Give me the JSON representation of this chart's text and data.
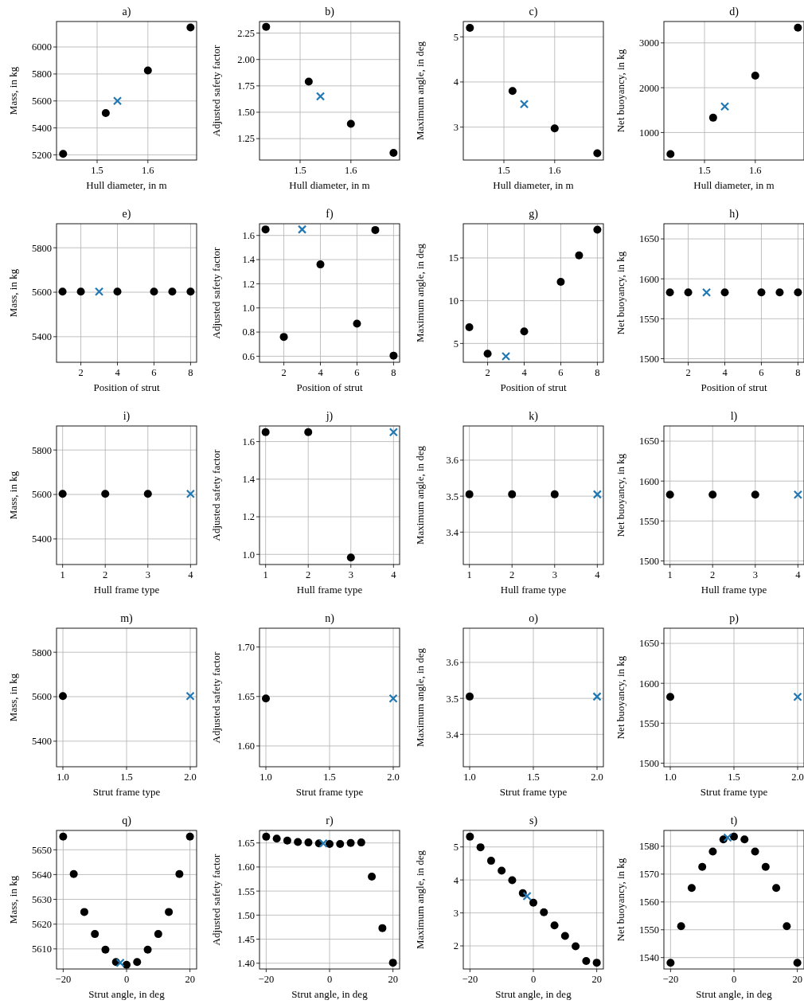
{
  "chart_data": [
    {
      "type": "scatter",
      "title": "a)",
      "xlabel": "Hull diameter, in m",
      "ylabel": "Mass, in kg",
      "xlim": [
        1.42,
        1.696
      ],
      "xticks": [
        1.5,
        1.6
      ],
      "ylim": [
        5162,
        6189
      ],
      "yticks": [
        5200,
        5400,
        5600,
        5800,
        6000
      ],
      "grid": true,
      "series": [
        {
          "color": "#000000",
          "marker": "circle",
          "x": [
            1.433,
            1.517,
            1.6,
            1.684
          ],
          "values": [
            5208,
            5510,
            5826,
            6145
          ]
        },
        {
          "color": "#1f77b4",
          "marker": "cross",
          "x": [
            1.54
          ],
          "values": [
            5600
          ]
        }
      ]
    },
    {
      "type": "scatter",
      "title": "b)",
      "xlabel": "Hull diameter, in m",
      "ylabel": "Adjusted safety factor",
      "xlim": [
        1.42,
        1.696
      ],
      "xticks": [
        1.5,
        1.6
      ],
      "ylim": [
        1.047,
        2.36
      ],
      "yticks": [
        1.25,
        {
          "value": 1.5,
          "label": "1.50"
        },
        1.75,
        {
          "value": 2,
          "label": "2.00"
        },
        2.25
      ],
      "grid": true,
      "series": [
        {
          "color": "#000000",
          "marker": "circle",
          "x": [
            1.433,
            1.517,
            1.6,
            1.684
          ],
          "values": [
            2.31,
            1.79,
            1.39,
            1.115
          ]
        },
        {
          "color": "#1f77b4",
          "marker": "cross",
          "x": [
            1.54
          ],
          "values": [
            1.65
          ]
        }
      ]
    },
    {
      "type": "scatter",
      "title": "c)",
      "xlabel": "Hull diameter, in m",
      "ylabel": "Maximum angle, in deg",
      "xlim": [
        1.42,
        1.696
      ],
      "xticks": [
        1.5,
        1.6
      ],
      "ylim": [
        2.27,
        5.34
      ],
      "yticks": [
        3,
        4,
        5
      ],
      "grid": true,
      "series": [
        {
          "color": "#000000",
          "marker": "circle",
          "x": [
            1.433,
            1.517,
            1.6,
            1.684
          ],
          "values": [
            5.2,
            3.8,
            2.97,
            2.42
          ]
        },
        {
          "color": "#1f77b4",
          "marker": "cross",
          "x": [
            1.54
          ],
          "values": [
            3.51
          ]
        }
      ]
    },
    {
      "type": "scatter",
      "title": "d)",
      "xlabel": "Hull diameter, in m",
      "ylabel": "Net buoyancy, in kg",
      "xlim": [
        1.42,
        1.696
      ],
      "xticks": [
        1.5,
        1.6
      ],
      "ylim": [
        386,
        3477
      ],
      "yticks": [
        1000,
        2000,
        3000
      ],
      "grid": true,
      "series": [
        {
          "color": "#000000",
          "marker": "circle",
          "x": [
            1.433,
            1.517,
            1.6,
            1.684
          ],
          "values": [
            520,
            1330,
            2270,
            3340
          ]
        },
        {
          "color": "#1f77b4",
          "marker": "cross",
          "x": [
            1.54
          ],
          "values": [
            1580
          ]
        }
      ]
    },
    {
      "type": "scatter",
      "title": "e)",
      "xlabel": "Position of strut",
      "ylabel": "Mass, in kg",
      "xlim": [
        0.67,
        8.33
      ],
      "xticks": [
        2,
        4,
        6,
        8
      ],
      "ylim": [
        5285,
        5908
      ],
      "yticks": [
        5400,
        5600,
        5800
      ],
      "grid": true,
      "series": [
        {
          "color": "#000000",
          "marker": "circle",
          "x": [
            1,
            2,
            4,
            6,
            7,
            8
          ],
          "values": [
            5603,
            5603,
            5603,
            5603,
            5603,
            5603
          ]
        },
        {
          "color": "#1f77b4",
          "marker": "cross",
          "x": [
            3
          ],
          "values": [
            5603
          ]
        }
      ]
    },
    {
      "type": "scatter",
      "title": "f)",
      "xlabel": "Position of strut",
      "ylabel": "Adjusted safety factor",
      "xlim": [
        0.67,
        8.33
      ],
      "xticks": [
        2,
        4,
        6,
        8
      ],
      "ylim": [
        0.55,
        1.697
      ],
      "yticks": [
        0.6,
        0.8,
        {
          "value": 1,
          "label": "1.0"
        },
        1.2,
        1.4,
        1.6
      ],
      "grid": true,
      "series": [
        {
          "color": "#000000",
          "marker": "circle",
          "x": [
            1,
            2,
            4,
            6,
            7,
            8
          ],
          "values": [
            1.65,
            0.76,
            1.36,
            0.87,
            1.645,
            0.605
          ]
        },
        {
          "color": "#1f77b4",
          "marker": "cross",
          "x": [
            3
          ],
          "values": [
            1.65
          ]
        }
      ]
    },
    {
      "type": "scatter",
      "title": "g)",
      "xlabel": "Position of strut",
      "ylabel": "Maximum angle, in deg",
      "xlim": [
        0.67,
        8.33
      ],
      "xticks": [
        2,
        4,
        6,
        8
      ],
      "ylim": [
        2.8,
        19
      ],
      "yticks": [
        5,
        10,
        15
      ],
      "grid": true,
      "series": [
        {
          "color": "#000000",
          "marker": "circle",
          "x": [
            1,
            2,
            4,
            6,
            7,
            8
          ],
          "values": [
            6.9,
            3.8,
            6.4,
            12.2,
            15.3,
            18.3
          ]
        },
        {
          "color": "#1f77b4",
          "marker": "cross",
          "x": [
            3
          ],
          "values": [
            3.5
          ]
        }
      ]
    },
    {
      "type": "scatter",
      "title": "h)",
      "xlabel": "Position of strut",
      "ylabel": "Net buoyancy, in kg",
      "xlim": [
        0.67,
        8.33
      ],
      "xticks": [
        2,
        4,
        6,
        8
      ],
      "ylim": [
        1495.5,
        1669
      ],
      "yticks": [
        1500,
        1550,
        1600,
        1650
      ],
      "grid": true,
      "series": [
        {
          "color": "#000000",
          "marker": "circle",
          "x": [
            1,
            2,
            4,
            6,
            7,
            8
          ],
          "values": [
            1583,
            1583,
            1583,
            1583,
            1583,
            1583
          ]
        },
        {
          "color": "#1f77b4",
          "marker": "cross",
          "x": [
            3
          ],
          "values": [
            1583
          ]
        }
      ]
    },
    {
      "type": "scatter",
      "title": "i)",
      "xlabel": "Hull frame type",
      "ylabel": "Mass, in kg",
      "xlim": [
        0.857,
        4.143
      ],
      "xticks": [
        1,
        2,
        3,
        4
      ],
      "ylim": [
        5285,
        5908
      ],
      "yticks": [
        5400,
        5600,
        5800
      ],
      "grid": true,
      "series": [
        {
          "color": "#000000",
          "marker": "circle",
          "x": [
            1,
            2,
            3
          ],
          "values": [
            5603,
            5603,
            5603
          ]
        },
        {
          "color": "#1f77b4",
          "marker": "cross",
          "x": [
            4
          ],
          "values": [
            5603
          ]
        }
      ]
    },
    {
      "type": "scatter",
      "title": "j)",
      "xlabel": "Hull frame type",
      "ylabel": "Adjusted safety factor",
      "xlim": [
        0.857,
        4.143
      ],
      "xticks": [
        1,
        2,
        3,
        4
      ],
      "ylim": [
        0.946,
        1.683
      ],
      "yticks": [
        {
          "value": 1,
          "label": "1.0"
        },
        1.2,
        1.4,
        1.6
      ],
      "grid": true,
      "series": [
        {
          "color": "#000000",
          "marker": "circle",
          "x": [
            1,
            2,
            3
          ],
          "values": [
            1.65,
            1.65,
            0.983
          ]
        },
        {
          "color": "#1f77b4",
          "marker": "cross",
          "x": [
            4
          ],
          "values": [
            1.65
          ]
        }
      ]
    },
    {
      "type": "scatter",
      "title": "k)",
      "xlabel": "Hull frame type",
      "ylabel": "Maximum angle, in deg",
      "xlim": [
        0.857,
        4.143
      ],
      "xticks": [
        1,
        2,
        3,
        4
      ],
      "ylim": [
        3.31,
        3.695
      ],
      "yticks": [
        3.4,
        3.5,
        3.6
      ],
      "grid": true,
      "series": [
        {
          "color": "#000000",
          "marker": "circle",
          "x": [
            1,
            2,
            3
          ],
          "values": [
            3.505,
            3.505,
            3.505
          ]
        },
        {
          "color": "#1f77b4",
          "marker": "cross",
          "x": [
            4
          ],
          "values": [
            3.505
          ]
        }
      ]
    },
    {
      "type": "scatter",
      "title": "l)",
      "xlabel": "Hull frame type",
      "ylabel": "Net buoyancy, in kg",
      "xlim": [
        0.857,
        4.143
      ],
      "xticks": [
        1,
        2,
        3,
        4
      ],
      "ylim": [
        1495.5,
        1669
      ],
      "yticks": [
        1500,
        1550,
        1600,
        1650
      ],
      "grid": true,
      "series": [
        {
          "color": "#000000",
          "marker": "circle",
          "x": [
            1,
            2,
            3
          ],
          "values": [
            1583,
            1583,
            1583
          ]
        },
        {
          "color": "#1f77b4",
          "marker": "cross",
          "x": [
            4
          ],
          "values": [
            1583
          ]
        }
      ]
    },
    {
      "type": "scatter",
      "title": "m)",
      "xlabel": "Strut frame type",
      "ylabel": "Mass, in kg",
      "xlim": [
        0.95,
        2.05
      ],
      "xticks": [
        {
          "value": 1,
          "label": "1.0"
        },
        1.5,
        {
          "value": 2,
          "label": "2.0"
        }
      ],
      "ylim": [
        5285,
        5908
      ],
      "yticks": [
        5400,
        5600,
        5800
      ],
      "grid": true,
      "series": [
        {
          "color": "#000000",
          "marker": "circle",
          "x": [
            1
          ],
          "values": [
            5603
          ]
        },
        {
          "color": "#1f77b4",
          "marker": "cross",
          "x": [
            2
          ],
          "values": [
            5603
          ]
        }
      ]
    },
    {
      "type": "scatter",
      "title": "n)",
      "xlabel": "Strut frame type",
      "ylabel": "Adjusted safety factor",
      "xlim": [
        0.95,
        2.05
      ],
      "xticks": [
        {
          "value": 1,
          "label": "1.0"
        },
        1.5,
        {
          "value": 2,
          "label": "2.0"
        }
      ],
      "ylim": [
        1.579,
        1.719
      ],
      "yticks": [
        {
          "value": 1.6,
          "label": "1.60"
        },
        1.65,
        {
          "value": 1.7,
          "label": "1.70"
        }
      ],
      "grid": true,
      "series": [
        {
          "color": "#000000",
          "marker": "circle",
          "x": [
            1
          ],
          "values": [
            1.648
          ]
        },
        {
          "color": "#1f77b4",
          "marker": "cross",
          "x": [
            2
          ],
          "values": [
            1.648
          ]
        }
      ]
    },
    {
      "type": "scatter",
      "title": "o)",
      "xlabel": "Strut frame type",
      "ylabel": "Maximum angle, in deg",
      "xlim": [
        0.95,
        2.05
      ],
      "xticks": [
        {
          "value": 1,
          "label": "1.0"
        },
        1.5,
        {
          "value": 2,
          "label": "2.0"
        }
      ],
      "ylim": [
        3.31,
        3.695
      ],
      "yticks": [
        3.4,
        3.5,
        3.6
      ],
      "grid": true,
      "series": [
        {
          "color": "#000000",
          "marker": "circle",
          "x": [
            1
          ],
          "values": [
            3.505
          ]
        },
        {
          "color": "#1f77b4",
          "marker": "cross",
          "x": [
            2
          ],
          "values": [
            3.505
          ]
        }
      ]
    },
    {
      "type": "scatter",
      "title": "p)",
      "xlabel": "Strut frame type",
      "ylabel": "Net buoyancy, in kg",
      "xlim": [
        0.95,
        2.05
      ],
      "xticks": [
        {
          "value": 1,
          "label": "1.0"
        },
        1.5,
        {
          "value": 2,
          "label": "2.0"
        }
      ],
      "ylim": [
        1495.5,
        1669
      ],
      "yticks": [
        1500,
        1550,
        1600,
        1650
      ],
      "grid": true,
      "series": [
        {
          "color": "#000000",
          "marker": "circle",
          "x": [
            1
          ],
          "values": [
            1583
          ]
        },
        {
          "color": "#1f77b4",
          "marker": "cross",
          "x": [
            2
          ],
          "values": [
            1583
          ]
        }
      ]
    },
    {
      "type": "scatter",
      "title": "q)",
      "xlabel": "Strut angle, in deg",
      "ylabel": "Mass, in kg",
      "xlim": [
        -22.1,
        22.1
      ],
      "xticks": [
        {
          "value": -20,
          "label": "−20"
        },
        0,
        20
      ],
      "ylim": [
        5601.9,
        5657.8
      ],
      "yticks": [
        5610,
        5620,
        5630,
        5640,
        5650
      ],
      "grid": true,
      "series": [
        {
          "color": "#000000",
          "marker": "circle",
          "x": [
            -20,
            -16.67,
            -13.33,
            -10,
            -6.67,
            -3.33,
            0,
            3.33,
            6.67,
            10,
            13.33,
            16.67,
            20
          ],
          "values": [
            5655.3,
            5640.2,
            5624.9,
            5616,
            5609.7,
            5604.7,
            5603.6,
            5604.7,
            5609.7,
            5616,
            5624.9,
            5640.2,
            5655.3
          ]
        },
        {
          "color": "#1f77b4",
          "marker": "cross",
          "x": [
            -2
          ],
          "values": [
            5604.4
          ]
        }
      ]
    },
    {
      "type": "scatter",
      "title": "r)",
      "xlabel": "Strut angle, in deg",
      "ylabel": "Adjusted safety factor",
      "xlim": [
        -22.1,
        22.1
      ],
      "xticks": [
        {
          "value": -20,
          "label": "−20"
        },
        0,
        20
      ],
      "ylim": [
        1.388,
        1.676
      ],
      "yticks": [
        {
          "value": 1.4,
          "label": "1.40"
        },
        1.45,
        {
          "value": 1.5,
          "label": "1.50"
        },
        1.55,
        {
          "value": 1.6,
          "label": "1.60"
        },
        1.65
      ],
      "grid": true,
      "series": [
        {
          "color": "#000000",
          "marker": "circle",
          "x": [
            -20,
            -16.67,
            -13.33,
            -10,
            -6.67,
            -3.33,
            0,
            3.33,
            6.67,
            10,
            13.33,
            16.67,
            20
          ],
          "values": [
            1.663,
            1.659,
            1.655,
            1.652,
            1.651,
            1.649,
            1.648,
            1.648,
            1.65,
            1.651,
            1.58,
            1.473,
            1.401
          ]
        },
        {
          "color": "#1f77b4",
          "marker": "cross",
          "x": [
            -2
          ],
          "values": [
            1.649
          ]
        }
      ]
    },
    {
      "type": "scatter",
      "title": "s)",
      "xlabel": "Strut angle, in deg",
      "ylabel": "Maximum angle, in deg",
      "xlim": [
        -22.1,
        22.1
      ],
      "xticks": [
        {
          "value": -20,
          "label": "−20"
        },
        0,
        20
      ],
      "ylim": [
        1.3,
        5.5
      ],
      "yticks": [
        2,
        3,
        4,
        5
      ],
      "grid": true,
      "series": [
        {
          "color": "#000000",
          "marker": "circle",
          "x": [
            -20,
            -16.67,
            -13.33,
            -10,
            -6.67,
            -3.33,
            0,
            3.33,
            6.67,
            10,
            13.33,
            16.67,
            20
          ],
          "values": [
            5.31,
            4.99,
            4.58,
            4.28,
            3.99,
            3.6,
            3.31,
            3.02,
            2.62,
            2.3,
            1.99,
            1.54,
            1.49
          ]
        },
        {
          "color": "#1f77b4",
          "marker": "cross",
          "x": [
            -2
          ],
          "values": [
            3.51
          ]
        }
      ]
    },
    {
      "type": "scatter",
      "title": "t)",
      "xlabel": "Strut angle, in deg",
      "ylabel": "Net buoyancy, in kg",
      "xlim": [
        -22.1,
        22.1
      ],
      "xticks": [
        {
          "value": -20,
          "label": "−20"
        },
        0,
        20
      ],
      "ylim": [
        1535.9,
        1585.7
      ],
      "yticks": [
        1540,
        1550,
        1560,
        1570,
        1580
      ],
      "grid": true,
      "series": [
        {
          "color": "#000000",
          "marker": "circle",
          "x": [
            -20,
            -16.67,
            -13.33,
            -10,
            -6.67,
            -3.33,
            0,
            3.33,
            6.67,
            10,
            13.33,
            16.67,
            20
          ],
          "values": [
            1538.1,
            1551.3,
            1565,
            1572.6,
            1578.1,
            1582.5,
            1583.5,
            1582.5,
            1578.1,
            1572.6,
            1565,
            1551.3,
            1538.1
          ]
        },
        {
          "color": "#1f77b4",
          "marker": "cross",
          "x": [
            -2
          ],
          "values": [
            1583.1
          ]
        }
      ]
    }
  ]
}
